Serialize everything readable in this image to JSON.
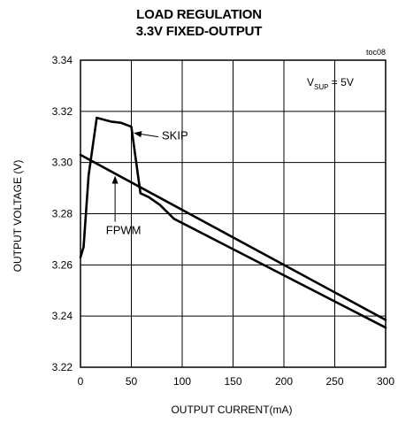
{
  "chart_data": {
    "type": "line",
    "title": "LOAD REGULATION",
    "subtitle": "3.3V FIXED-OUTPUT",
    "figure_id": "toc08",
    "xlabel": "OUTPUT CURRENT(mA)",
    "ylabel": "OUTPUT VOLTAGE (V)",
    "xlim": [
      0,
      300
    ],
    "ylim": [
      3.22,
      3.34
    ],
    "xticks": [
      0,
      50,
      100,
      150,
      200,
      250,
      300
    ],
    "yticks": [
      "3.22",
      "3.24",
      "3.26",
      "3.28",
      "3.30",
      "3.32",
      "3.34"
    ],
    "grid": true,
    "condition": {
      "base": "V",
      "sub": "SUP",
      "rest": " = 5V"
    },
    "series": [
      {
        "name": "SKIP",
        "points": [
          [
            0,
            3.263
          ],
          [
            3,
            3.267
          ],
          [
            8,
            3.295
          ],
          [
            16,
            3.3175
          ],
          [
            30,
            3.316
          ],
          [
            40,
            3.3155
          ],
          [
            50,
            3.314
          ],
          [
            59,
            3.288
          ],
          [
            67,
            3.2865
          ],
          [
            78,
            3.2835
          ],
          [
            92,
            3.278
          ],
          [
            300,
            3.2355
          ]
        ]
      },
      {
        "name": "FPWM",
        "points": [
          [
            0,
            3.303
          ],
          [
            300,
            3.2385
          ]
        ]
      }
    ],
    "annotations": [
      {
        "text": "SKIP",
        "x": 80,
        "y": 3.309,
        "arrow_to": [
          53,
          3.3115
        ]
      },
      {
        "text": "FPWM",
        "x": 25,
        "y": 3.272,
        "arrow_to": [
          34,
          3.2945
        ]
      }
    ]
  }
}
